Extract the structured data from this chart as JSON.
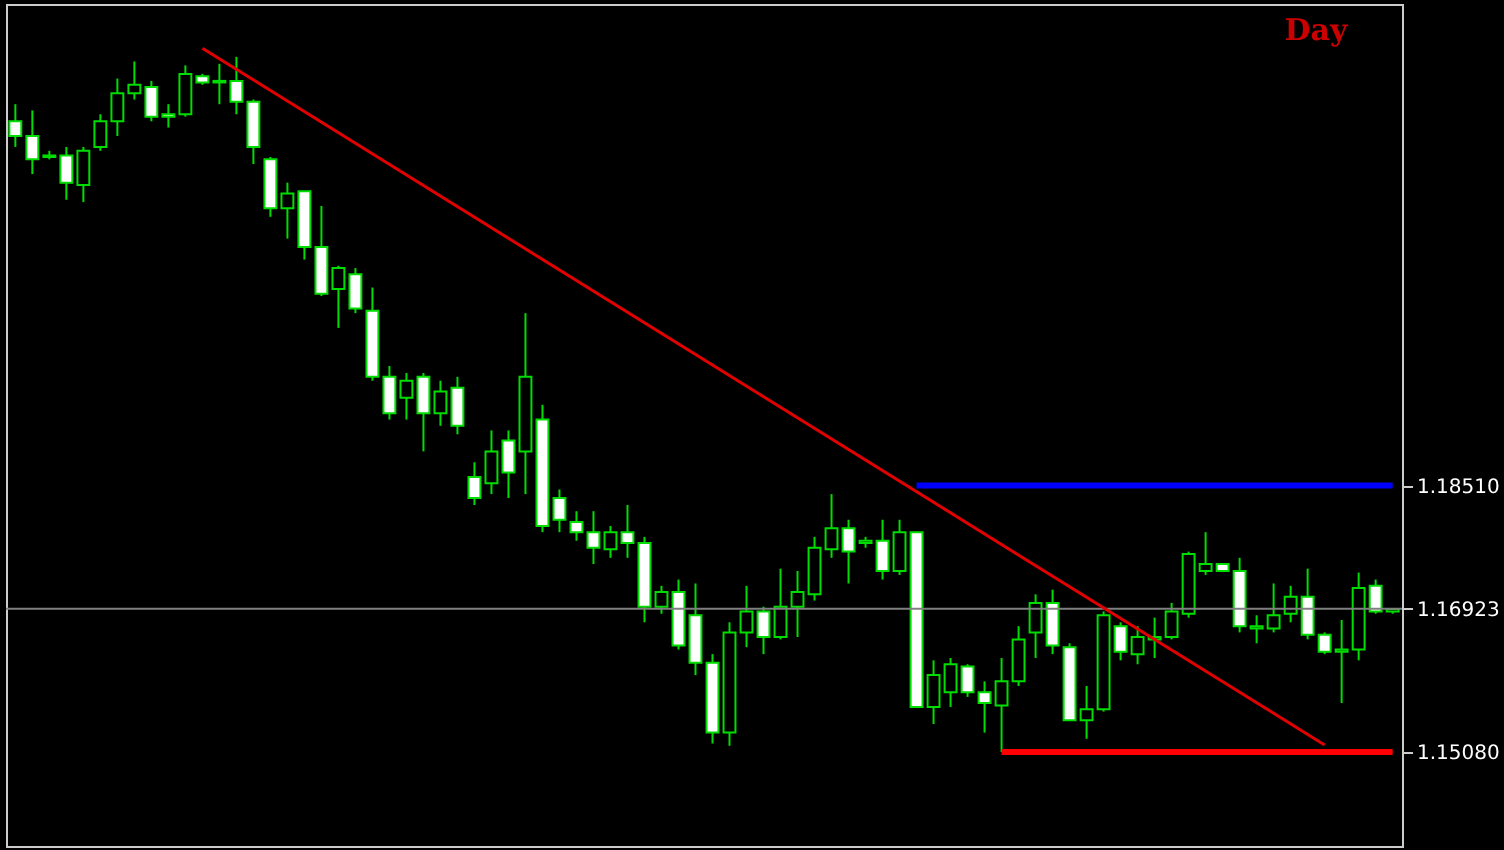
{
  "chart_data": {
    "type": "candlestick",
    "annotations": [
      "Day"
    ],
    "categories": [
      null,
      null,
      null,
      null,
      null,
      null,
      null,
      null,
      null,
      null,
      null,
      null,
      null,
      null,
      null,
      null,
      null,
      null,
      null,
      null,
      null,
      null,
      null,
      null,
      null,
      null,
      null,
      null,
      null,
      null,
      null,
      null,
      null,
      null,
      null,
      null,
      null,
      null,
      null,
      null,
      null,
      null,
      null,
      null,
      null,
      null,
      null,
      null,
      null,
      null,
      null,
      null,
      null,
      null,
      null,
      null,
      null,
      null,
      null,
      null,
      null,
      null,
      null,
      null,
      null,
      null,
      null,
      null,
      null,
      null,
      null,
      null,
      null,
      null,
      null,
      null,
      null,
      null,
      null,
      null,
      null,
      null
    ],
    "ohlc": [
      [
        1.232,
        1.2342,
        1.2287,
        1.2301
      ],
      [
        1.2301,
        1.2334,
        1.2252,
        1.2271
      ],
      [
        1.2274,
        1.2282,
        1.2271,
        1.2276
      ],
      [
        1.2276,
        1.2287,
        1.2219,
        1.2241
      ],
      [
        1.2238,
        1.2287,
        1.2216,
        1.2282
      ],
      [
        1.2287,
        1.2329,
        1.2282,
        1.232
      ],
      [
        1.232,
        1.2375,
        1.2301,
        1.2356
      ],
      [
        1.2356,
        1.2397,
        1.2348,
        1.2367
      ],
      [
        1.2364,
        1.2372,
        1.232,
        1.2326
      ],
      [
        1.2329,
        1.2342,
        1.2312,
        1.2326
      ],
      [
        1.2329,
        1.2392,
        1.2326,
        1.2381
      ],
      [
        1.2378,
        1.2381,
        1.2367,
        1.237
      ],
      [
        1.237,
        1.2394,
        1.2342,
        1.2372
      ],
      [
        1.2372,
        1.2403,
        1.2329,
        1.2345
      ],
      [
        1.2345,
        1.2348,
        1.2265,
        1.2287
      ],
      [
        1.2271,
        1.2274,
        1.2197,
        1.2208
      ],
      [
        1.2208,
        1.2241,
        1.2169,
        1.2227
      ],
      [
        1.223,
        1.223,
        1.2142,
        1.2158
      ],
      [
        1.2158,
        1.2211,
        1.2095,
        1.2098
      ],
      [
        1.2104,
        1.2134,
        1.2054,
        1.2131
      ],
      [
        1.2123,
        1.2131,
        1.2073,
        1.2079
      ],
      [
        1.2076,
        1.2106,
        1.1986,
        1.1991
      ],
      [
        1.1991,
        1.2005,
        1.1936,
        1.1944
      ],
      [
        1.1964,
        1.1996,
        1.1936,
        1.1986
      ],
      [
        1.1991,
        1.1996,
        1.1895,
        1.1944
      ],
      [
        1.1944,
        1.1986,
        1.1928,
        1.1972
      ],
      [
        1.1977,
        1.1991,
        1.1917,
        1.1928
      ],
      [
        1.1862,
        1.1881,
        1.1826,
        1.1835
      ],
      [
        1.1854,
        1.1922,
        1.184,
        1.1895
      ],
      [
        1.1909,
        1.1922,
        1.1835,
        1.1868
      ],
      [
        1.1895,
        1.2073,
        1.184,
        1.1991
      ],
      [
        1.1936,
        1.1955,
        1.1791,
        1.1799
      ],
      [
        1.1835,
        1.1846,
        1.1791,
        1.1807
      ],
      [
        1.1804,
        1.1818,
        1.178,
        1.1791
      ],
      [
        1.1791,
        1.1818,
        1.175,
        1.1771
      ],
      [
        1.1769,
        1.1799,
        1.1758,
        1.1791
      ],
      [
        1.1791,
        1.1826,
        1.1758,
        1.1777
      ],
      [
        1.1777,
        1.1785,
        1.1675,
        1.1695
      ],
      [
        1.1695,
        1.1722,
        1.1686,
        1.1714
      ],
      [
        1.1714,
        1.173,
        1.164,
        1.1645
      ],
      [
        1.1684,
        1.1725,
        1.1607,
        1.1623
      ],
      [
        1.1623,
        1.1634,
        1.1519,
        1.1533
      ],
      [
        1.1533,
        1.1675,
        1.1516,
        1.1662
      ],
      [
        1.1662,
        1.1722,
        1.1643,
        1.1689
      ],
      [
        1.1689,
        1.1695,
        1.1634,
        1.1656
      ],
      [
        1.1656,
        1.1744,
        1.1653,
        1.1695
      ],
      [
        1.1695,
        1.1741,
        1.1656,
        1.1714
      ],
      [
        1.1711,
        1.1785,
        1.1703,
        1.1771
      ],
      [
        1.1769,
        1.184,
        1.1758,
        1.1796
      ],
      [
        1.1796,
        1.1807,
        1.1725,
        1.1766
      ],
      [
        1.1777,
        1.1785,
        1.1771,
        1.178
      ],
      [
        1.178,
        1.1807,
        1.173,
        1.1741
      ],
      [
        1.1741,
        1.1807,
        1.1736,
        1.1791
      ],
      [
        1.1791,
        1.1791,
        1.1566,
        1.1566
      ],
      [
        1.1566,
        1.1626,
        1.1544,
        1.1607
      ],
      [
        1.1585,
        1.1629,
        1.1566,
        1.1621
      ],
      [
        1.1618,
        1.1621,
        1.1579,
        1.1585
      ],
      [
        1.1585,
        1.1599,
        1.1533,
        1.1571
      ],
      [
        1.1568,
        1.1629,
        1.1508,
        1.1599
      ],
      [
        1.1599,
        1.167,
        1.1593,
        1.1653
      ],
      [
        1.1662,
        1.1711,
        1.1629,
        1.17
      ],
      [
        1.17,
        1.1717,
        1.1634,
        1.1645
      ],
      [
        1.1643,
        1.1648,
        1.1549,
        1.1549
      ],
      [
        1.1549,
        1.1593,
        1.1525,
        1.1563
      ],
      [
        1.1563,
        1.1689,
        1.156,
        1.1684
      ],
      [
        1.167,
        1.1675,
        1.1626,
        1.1637
      ],
      [
        1.1634,
        1.167,
        1.1621,
        1.1656
      ],
      [
        1.1653,
        1.1681,
        1.1629,
        1.1656
      ],
      [
        1.1656,
        1.17,
        1.1653,
        1.1689
      ],
      [
        1.1686,
        1.1766,
        1.1681,
        1.1763
      ],
      [
        1.1741,
        1.1791,
        1.1736,
        1.175
      ],
      [
        1.175,
        1.175,
        1.1741,
        1.1741
      ],
      [
        1.1741,
        1.1758,
        1.1662,
        1.167
      ],
      [
        1.1667,
        1.1684,
        1.1648,
        1.167
      ],
      [
        1.1667,
        1.1725,
        1.1662,
        1.1684
      ],
      [
        1.1686,
        1.1722,
        1.1675,
        1.1708
      ],
      [
        1.1708,
        1.1744,
        1.1653,
        1.1659
      ],
      [
        1.1659,
        1.1662,
        1.1634,
        1.1637
      ],
      [
        1.1637,
        1.1678,
        1.1571,
        1.164
      ],
      [
        1.164,
        1.1739,
        1.1626,
        1.1719
      ],
      [
        1.1722,
        1.173,
        1.1686,
        1.1689
      ],
      [
        1.1689,
        1.1692,
        1.1686,
        1.1692
      ]
    ],
    "series": [
      {
        "type": "line",
        "color": "#e00000",
        "values": [
          null,
          null,
          null,
          null,
          null,
          null,
          null,
          null,
          null,
          null,
          null,
          1.2414,
          null,
          null,
          null,
          null,
          null,
          null,
          null,
          null,
          null,
          null,
          null,
          null,
          null,
          null,
          null,
          null,
          null,
          null,
          null,
          null,
          null,
          null,
          null,
          null,
          null,
          null,
          null,
          null,
          null,
          null,
          null,
          null,
          null,
          null,
          null,
          null,
          null,
          null,
          null,
          null,
          null,
          null,
          null,
          null,
          null,
          null,
          null,
          null,
          null,
          null,
          null,
          null,
          null,
          null,
          null,
          null,
          null,
          null,
          null,
          null,
          null,
          null,
          null,
          null,
          null,
          1.1517,
          null,
          null,
          null,
          null
        ]
      },
      {
        "type": "line",
        "color": "#0000ff",
        "values": [
          null,
          null,
          null,
          null,
          null,
          null,
          null,
          null,
          null,
          null,
          null,
          null,
          null,
          null,
          null,
          null,
          null,
          null,
          null,
          null,
          null,
          null,
          null,
          null,
          null,
          null,
          null,
          null,
          null,
          null,
          null,
          null,
          null,
          null,
          null,
          null,
          null,
          null,
          null,
          null,
          null,
          null,
          null,
          null,
          null,
          null,
          null,
          null,
          null,
          null,
          null,
          null,
          null,
          1.1851,
          null,
          null,
          null,
          null,
          null,
          null,
          null,
          null,
          null,
          null,
          null,
          null,
          null,
          null,
          null,
          null,
          null,
          null,
          null,
          null,
          null,
          null,
          null,
          null,
          null,
          null,
          null,
          1.1851
        ]
      },
      {
        "type": "line",
        "color": "#ff0000",
        "values": [
          null,
          null,
          null,
          null,
          null,
          null,
          null,
          null,
          null,
          null,
          null,
          null,
          null,
          null,
          null,
          null,
          null,
          null,
          null,
          null,
          null,
          null,
          null,
          null,
          null,
          null,
          null,
          null,
          null,
          null,
          null,
          null,
          null,
          null,
          null,
          null,
          null,
          null,
          null,
          null,
          null,
          null,
          null,
          null,
          null,
          null,
          null,
          null,
          null,
          null,
          null,
          null,
          null,
          null,
          null,
          null,
          null,
          null,
          1.1508,
          null,
          null,
          null,
          null,
          null,
          null,
          null,
          null,
          null,
          null,
          null,
          null,
          null,
          null,
          null,
          null,
          null,
          null,
          null,
          null,
          null,
          null,
          1.1508
        ]
      }
    ],
    "ref_lines": [
      {
        "axis": "y",
        "value": 1.16923,
        "color": "#808080"
      }
    ],
    "ylim": [
      1.1387,
      1.2471
    ],
    "yticks": [
      {
        "value": 1.1851,
        "label": "1.18510"
      },
      {
        "value": 1.16923,
        "label": "1.16923"
      },
      {
        "value": 1.1508,
        "label": "1.15080"
      }
    ],
    "tick_labels": "y",
    "grid": false
  }
}
